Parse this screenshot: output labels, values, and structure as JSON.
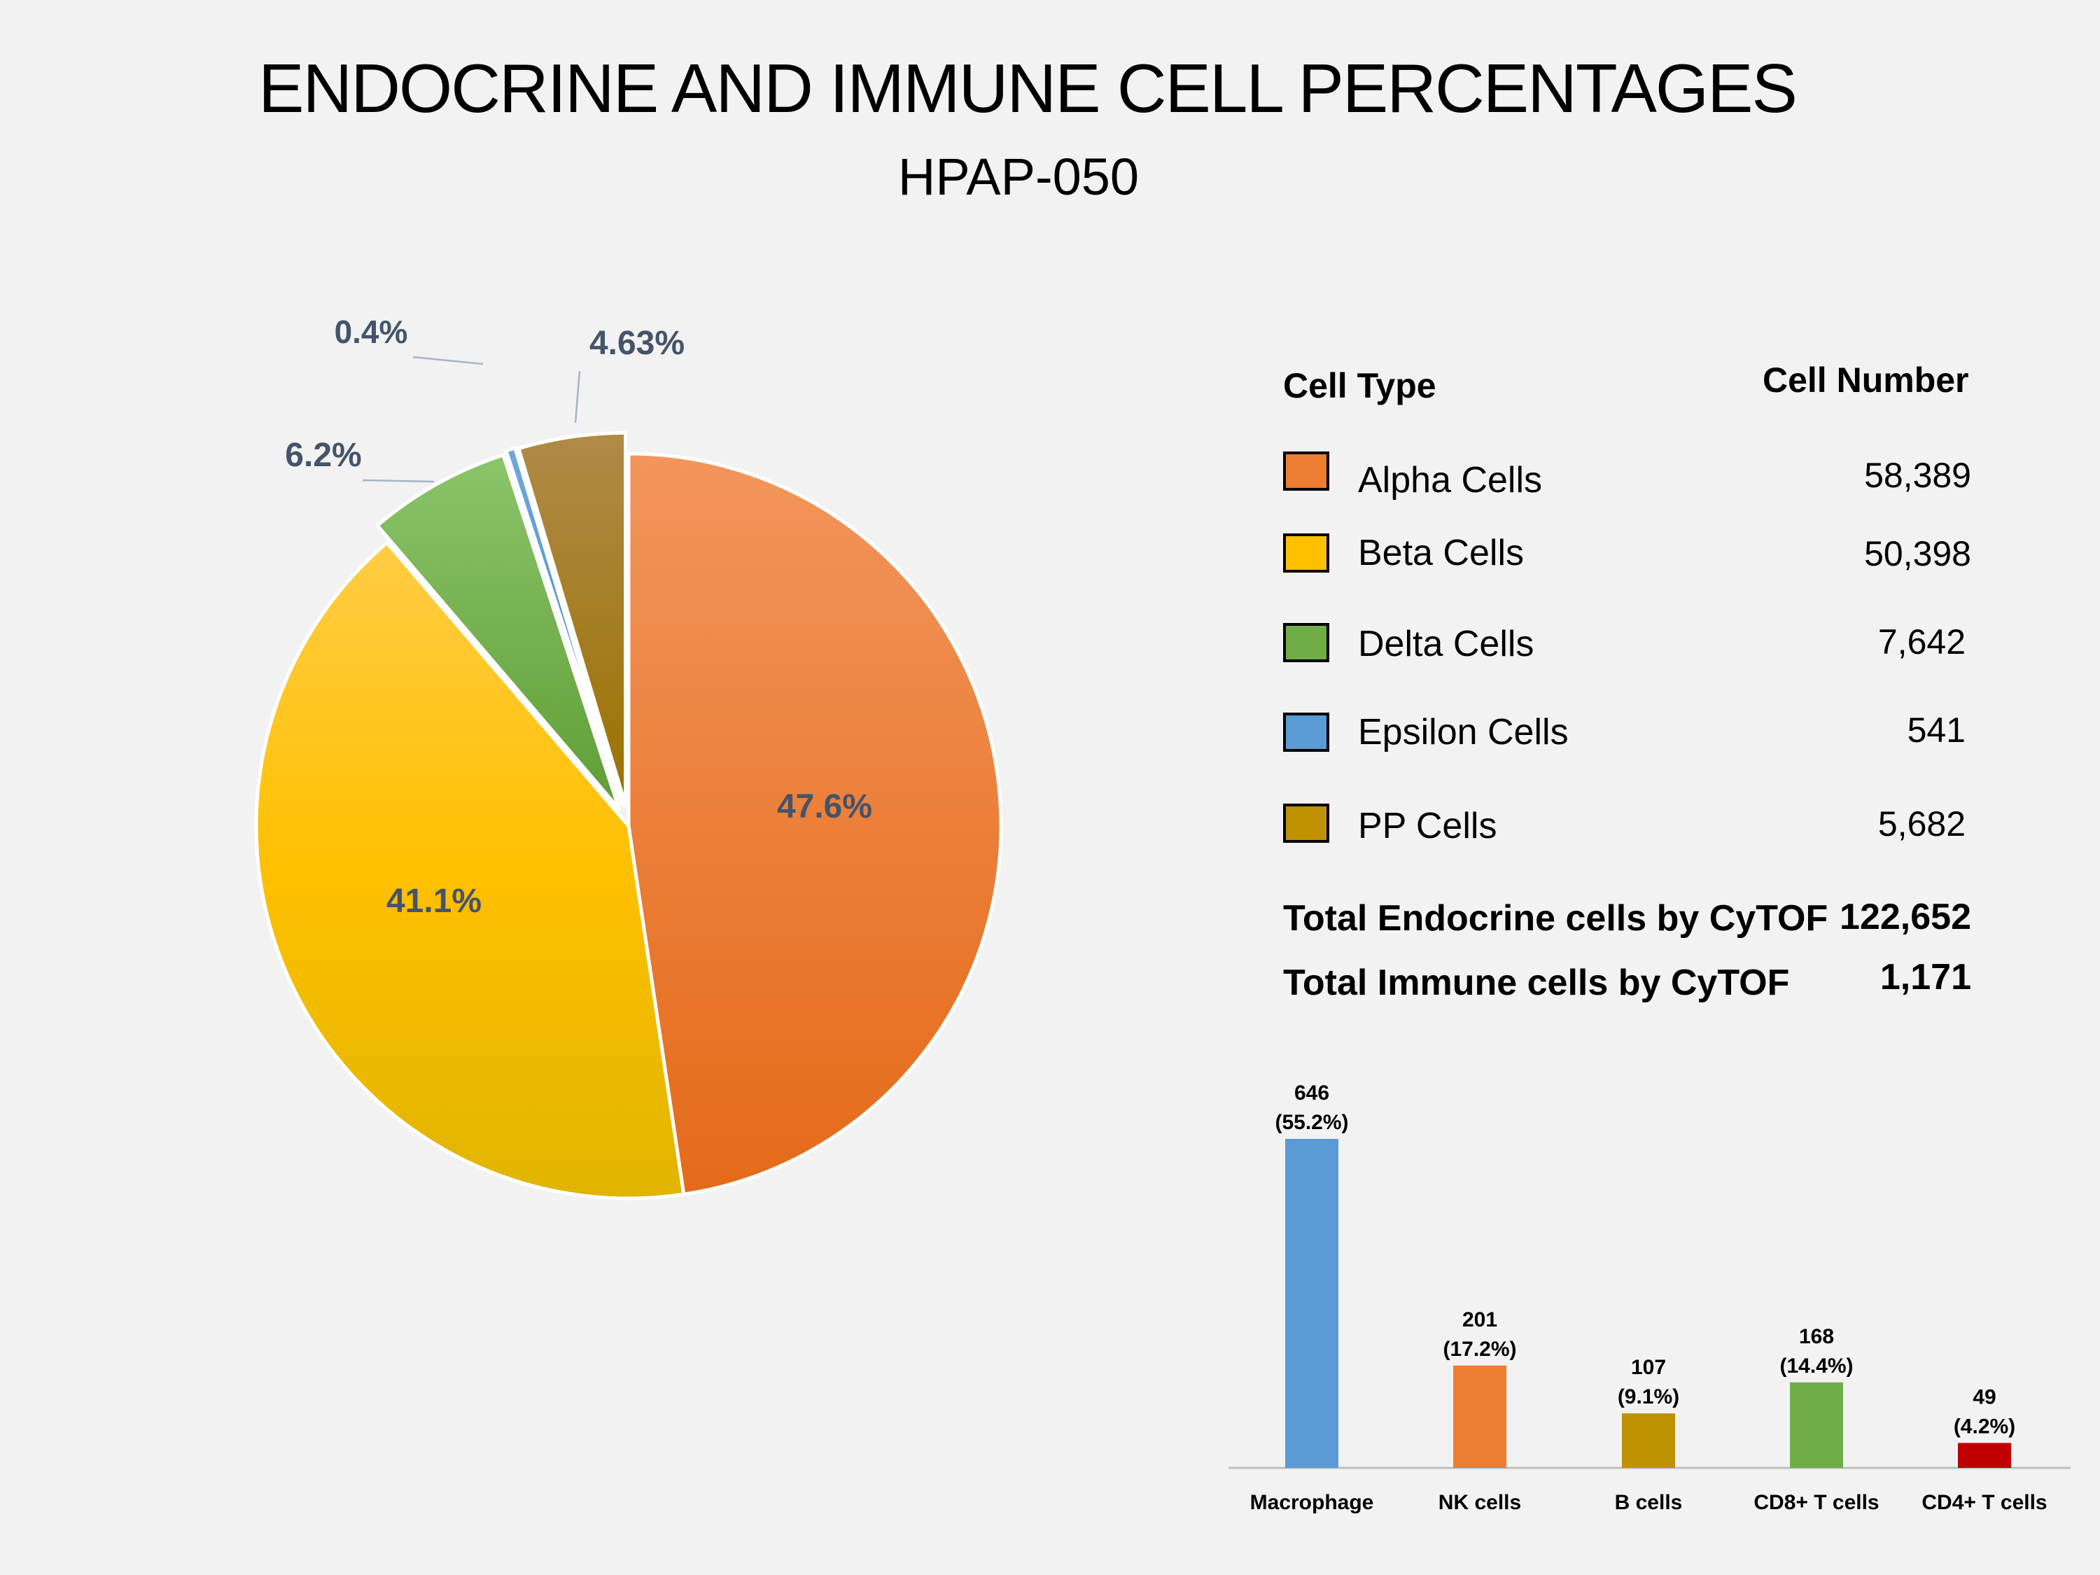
{
  "title": "ENDOCRINE AND IMMUNE CELL PERCENTAGES",
  "subtitle": "HPAP-050",
  "chart_data": [
    {
      "type": "pie",
      "slices": [
        {
          "name": "Alpha Cells",
          "value": 47.6,
          "label": "47.6%",
          "color": "#ed7d31"
        },
        {
          "name": "Beta Cells",
          "value": 41.1,
          "label": "41.1%",
          "color": "#ffc000"
        },
        {
          "name": "Delta Cells",
          "value": 6.2,
          "label": "6.2%",
          "color": "#70ad47"
        },
        {
          "name": "Epsilon Cells",
          "value": 0.4,
          "label": "0.4%",
          "color": "#5b9bd5"
        },
        {
          "name": "PP Cells",
          "value": 4.63,
          "label": "4.63%",
          "color": "#bf9000"
        }
      ]
    },
    {
      "type": "table",
      "columns": [
        "Cell Type",
        "Cell Number"
      ],
      "rows": [
        {
          "name": "Alpha Cells",
          "value": "58,389",
          "color": "#ed7d31"
        },
        {
          "name": "Beta Cells",
          "value": "50,398",
          "color": "#ffc000"
        },
        {
          "name": "Delta Cells",
          "value": "7,642",
          "color": "#70ad47"
        },
        {
          "name": "Epsilon Cells",
          "value": "541",
          "color": "#5b9bd5"
        },
        {
          "name": "PP Cells",
          "value": "5,682",
          "color": "#bf9000"
        }
      ],
      "totals": [
        {
          "label": "Total Endocrine cells by CyTOF",
          "value": "122,652"
        },
        {
          "label": "Total Immune cells by CyTOF",
          "value": "1,171"
        }
      ]
    },
    {
      "type": "bar",
      "categories": [
        "Macrophage",
        "NK cells",
        "B cells",
        "CD8+ T cells",
        "CD4+ T cells"
      ],
      "values": [
        646,
        201,
        107,
        168,
        49
      ],
      "percent_labels": [
        "(55.2%)",
        "(17.2%)",
        "(9.1%)",
        "(14.4%)",
        "(4.2%)"
      ],
      "colors": [
        "#5b9bd5",
        "#ed7d31",
        "#bf9000",
        "#70ad47",
        "#c00000"
      ],
      "ylim": [
        0,
        646
      ]
    }
  ]
}
